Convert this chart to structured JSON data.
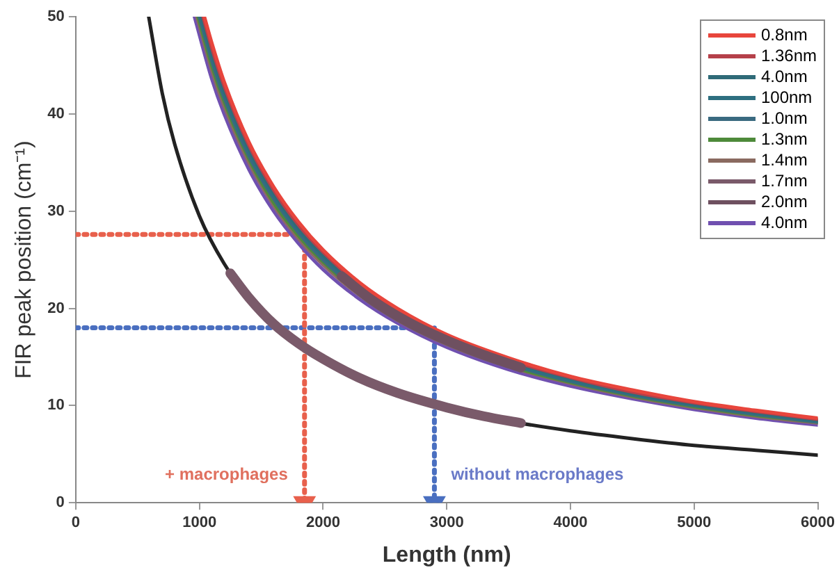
{
  "chart_data": {
    "type": "line",
    "xlabel": "Length (nm)",
    "ylabel": "FIR peak position (cm⁻¹)",
    "xlim": [
      0,
      6000
    ],
    "xticks": [
      0,
      1000,
      2000,
      3000,
      4000,
      5000,
      6000
    ],
    "ylim": [
      0,
      50
    ],
    "yticks": [
      0,
      10,
      20,
      30,
      40,
      50
    ],
    "grid": false,
    "legend": "top right",
    "marker": "none",
    "line_style": "solid",
    "annotations": [
      "+ macrophages",
      "without macrophages"
    ],
    "series": [
      {
        "color": "#222222",
        "x": [
          590,
          700,
          800,
          1000,
          1200,
          1400,
          1700,
          2000,
          2500,
          3000,
          3500,
          4000,
          4500,
          5000,
          5500,
          6000
        ],
        "values": [
          50.0,
          42.1,
          36.9,
          29.5,
          24.6,
          21.1,
          17.4,
          14.8,
          11.8,
          9.8,
          8.4,
          7.4,
          6.6,
          5.9,
          5.4,
          4.9
        ]
      },
      {
        "name": "0.8nm",
        "color": "#e8453c",
        "x": [
          1040,
          1100,
          1200,
          1400,
          1600,
          1800,
          2000,
          2300,
          2600,
          3000,
          3500,
          4000,
          4500,
          5000,
          5500,
          6000
        ],
        "values": [
          50.0,
          47.3,
          43.3,
          37.1,
          32.5,
          28.9,
          26.0,
          22.6,
          20.0,
          17.3,
          14.9,
          13.0,
          11.6,
          10.4,
          9.5,
          8.7
        ]
      },
      {
        "name": "1.36nm",
        "color": "#b5404a",
        "x": [
          1030,
          1100,
          1200,
          1400,
          1600,
          1800,
          2000,
          2300,
          2600,
          3000,
          3500,
          4000,
          4500,
          5000,
          5500,
          6000
        ],
        "values": [
          50.0,
          46.8,
          42.9,
          36.8,
          32.2,
          28.6,
          25.8,
          22.4,
          19.8,
          17.2,
          14.7,
          12.9,
          11.4,
          10.3,
          9.4,
          8.6
        ]
      },
      {
        "name": "4.0nm",
        "color": "#2f6b78",
        "x": [
          1020,
          1100,
          1200,
          1400,
          1600,
          1800,
          2000,
          2300,
          2600,
          3000,
          3500,
          4000,
          4500,
          5000,
          5500,
          6000
        ],
        "values": [
          50.0,
          46.4,
          42.5,
          36.4,
          31.9,
          28.3,
          25.5,
          22.2,
          19.6,
          17.0,
          14.6,
          12.8,
          11.3,
          10.2,
          9.3,
          8.5
        ]
      },
      {
        "name": "100nm",
        "color": "#2e6f80",
        "x": [
          1010,
          1100,
          1200,
          1400,
          1600,
          1800,
          2000,
          2300,
          2600,
          3000,
          3500,
          4000,
          4500,
          5000,
          5500,
          6000
        ],
        "values": [
          50.0,
          45.9,
          42.1,
          36.1,
          31.6,
          28.1,
          25.3,
          22.0,
          19.4,
          16.8,
          14.4,
          12.6,
          11.2,
          10.1,
          9.2,
          8.4
        ]
      },
      {
        "name": "1.0nm",
        "color": "#3a6a80",
        "x": [
          1000,
          1100,
          1200,
          1400,
          1600,
          1800,
          2000,
          2300,
          2600,
          3000,
          3500,
          4000,
          4500,
          5000,
          5500,
          6000
        ],
        "values": [
          50.0,
          45.5,
          41.7,
          35.7,
          31.3,
          27.8,
          25.0,
          21.7,
          19.2,
          16.7,
          14.3,
          12.5,
          11.1,
          10.0,
          9.1,
          8.3
        ]
      },
      {
        "name": "1.3nm",
        "color": "#4e8a3a",
        "x": [
          990,
          1100,
          1200,
          1400,
          1600,
          1800,
          2000,
          2300,
          2600,
          3000,
          3500,
          4000,
          4500,
          5000,
          5500,
          6000
        ],
        "values": [
          50.0,
          45.0,
          41.3,
          35.4,
          30.9,
          27.5,
          24.8,
          21.5,
          19.0,
          16.5,
          14.1,
          12.4,
          11.0,
          9.9,
          9.0,
          8.3
        ]
      },
      {
        "name": "1.4nm",
        "color": "#8a6a60",
        "x": [
          980,
          1100,
          1200,
          1400,
          1600,
          1800,
          2000,
          2300,
          2600,
          3000,
          3500,
          4000,
          4500,
          5000,
          5500,
          6000
        ],
        "values": [
          50.0,
          44.5,
          40.8,
          35.0,
          30.6,
          27.2,
          24.5,
          21.3,
          18.8,
          16.3,
          14.0,
          12.3,
          10.9,
          9.8,
          8.9,
          8.2
        ]
      },
      {
        "name": "1.7nm",
        "color": "#7a5a6a",
        "x": [
          1250,
          1400,
          1600,
          1800,
          2000,
          2300,
          2600,
          3000,
          3300,
          3600
        ],
        "values": [
          23.6,
          21.1,
          18.4,
          16.4,
          14.8,
          12.8,
          11.3,
          9.8,
          8.9,
          8.2
        ]
      },
      {
        "name": "2.0nm",
        "color": "#6e5060",
        "x": [
          2150,
          2400,
          2700,
          3000,
          3300,
          3600
        ],
        "values": [
          23.3,
          20.8,
          18.5,
          16.7,
          15.2,
          13.9
        ]
      },
      {
        "name": "4.0nm",
        "color": "#7050b0",
        "x": [
          960,
          1100,
          1200,
          1400,
          1600,
          1800,
          2000,
          2300,
          2600,
          3000,
          3500,
          4000,
          4500,
          5000,
          5500,
          6000
        ],
        "values": [
          50.0,
          43.6,
          40.0,
          34.3,
          30.0,
          26.7,
          24.0,
          20.9,
          18.5,
          16.0,
          13.7,
          12.0,
          10.7,
          9.6,
          8.7,
          8.0
        ]
      },
      {
        "color": "#e8604c",
        "line_style": "dotted",
        "x": [
          0,
          1850,
          1850
        ],
        "values": [
          27.6,
          27.6,
          0
        ]
      },
      {
        "color": "#4a6fc0",
        "line_style": "dotted",
        "x": [
          0,
          2900,
          2900
        ],
        "values": [
          18,
          18,
          0
        ]
      }
    ]
  }
}
